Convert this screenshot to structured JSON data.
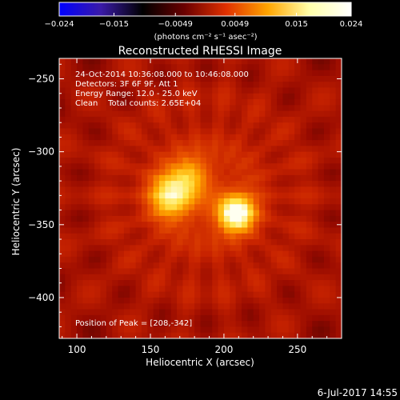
{
  "chart_data": {
    "type": "heatmap",
    "title": "Reconstructed RHESSI Image",
    "xlabel": "Heliocentric X (arcsec)",
    "ylabel": "Heliocentric Y (arcsec)",
    "xlim": [
      88,
      280
    ],
    "ylim": [
      -428,
      -236
    ],
    "x_ticks": [
      100,
      150,
      200,
      250
    ],
    "y_ticks": [
      -250,
      -300,
      -350,
      -400
    ],
    "grid": false,
    "colorbar": {
      "min": -0.024,
      "max": 0.024,
      "ticks": [
        {
          "value": -0.024,
          "label": "−0.024"
        },
        {
          "value": -0.015,
          "label": "−0.015"
        },
        {
          "value": -0.0049,
          "label": "−0.0049"
        },
        {
          "value": 0.0049,
          "label": "0.0049"
        },
        {
          "value": 0.015,
          "label": "0.015"
        },
        {
          "value": 0.024,
          "label": "0.024"
        }
      ],
      "unit_label": "(photons cm⁻² s⁻¹ asec⁻²)",
      "colormap": [
        "#0000ff",
        "#3a1aa8",
        "#000000",
        "#6a0000",
        "#e03000",
        "#ffa500",
        "#ffffaa",
        "#ffffff"
      ]
    },
    "annotations": [
      "24-Oct-2014 10:36:08.000 to 10:46:08.000",
      "Detectors: 3F 6F 9F, Att 1",
      "Energy Range: 12.0 - 25.0 keV",
      "Clean    Total counts: 2.65E+04"
    ],
    "peak_label": "Position of Peak = [208,-342]",
    "sources": [
      {
        "x": 208,
        "y": -342,
        "peak": 0.024,
        "sigma": 9
      },
      {
        "x": 165,
        "y": -330,
        "peak": 0.019,
        "sigma": 11
      },
      {
        "x": 178,
        "y": -315,
        "peak": 0.012,
        "sigma": 9
      }
    ]
  },
  "footer": {
    "timestamp": "6-Jul-2017 14:55"
  }
}
